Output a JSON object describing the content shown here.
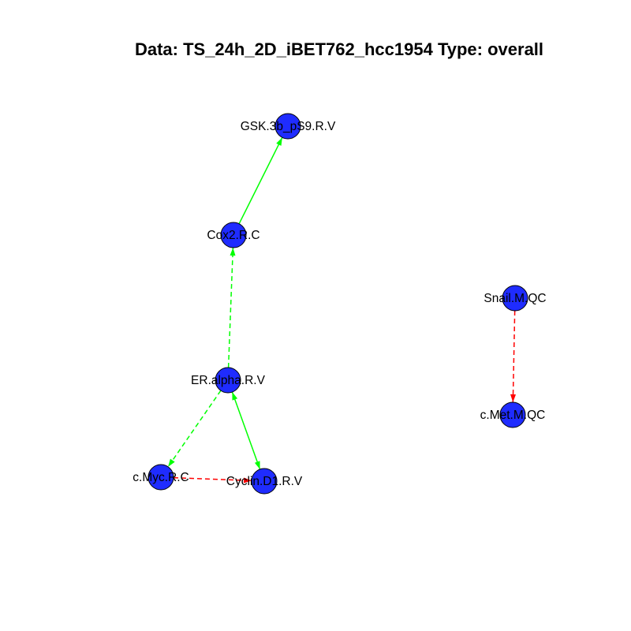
{
  "title": "Data: TS_24h_2D_iBET762_hcc1954 Type: overall",
  "colors": {
    "node_fill": "#1f2cff",
    "node_stroke": "#000000",
    "positive_edge": "#00ff00",
    "negative_edge": "#ff0000"
  },
  "nodes": [
    {
      "id": "gsk",
      "label": "GSK.3b_pS9.R.V"
    },
    {
      "id": "cox2",
      "label": "Cox2.R.C"
    },
    {
      "id": "er",
      "label": "ER.alpha.R.V"
    },
    {
      "id": "cmyc",
      "label": "c.Myc.R.C"
    },
    {
      "id": "cyclin",
      "label": "Cyclin.D1.R.V"
    },
    {
      "id": "snail",
      "label": "Snail.M.QC"
    },
    {
      "id": "cmet",
      "label": "c.Met.M.QC"
    }
  ],
  "edges": [
    {
      "from": "cox2",
      "to": "gsk",
      "sign": "positive",
      "style": "solid",
      "arrow": "end"
    },
    {
      "from": "er",
      "to": "cox2",
      "sign": "positive",
      "style": "dashed",
      "arrow": "end"
    },
    {
      "from": "er",
      "to": "cmyc",
      "sign": "positive",
      "style": "dashed",
      "arrow": "end"
    },
    {
      "from": "er",
      "to": "cyclin",
      "sign": "positive",
      "style": "solid",
      "arrow": "both"
    },
    {
      "from": "cmyc",
      "to": "cyclin",
      "sign": "negative",
      "style": "dashed",
      "arrow": "end"
    },
    {
      "from": "snail",
      "to": "cmet",
      "sign": "negative",
      "style": "dashed",
      "arrow": "end"
    }
  ]
}
